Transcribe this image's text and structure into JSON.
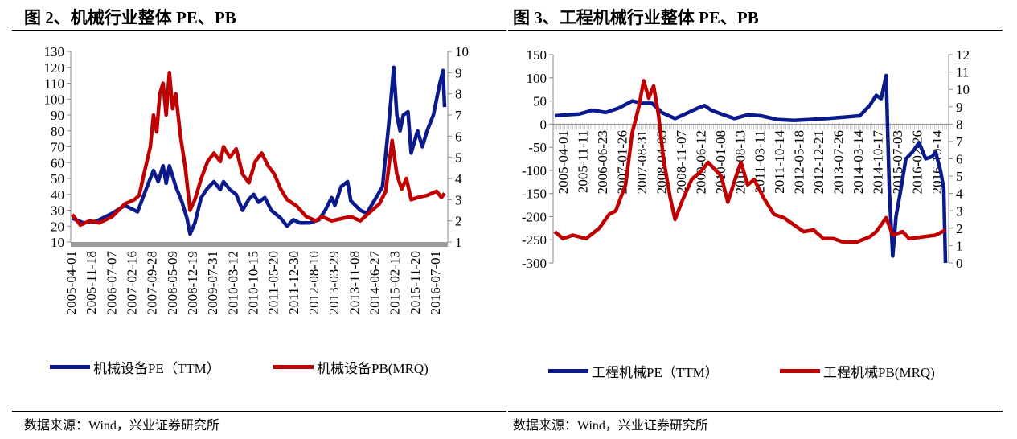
{
  "chart_data": [
    {
      "type": "line",
      "title": "图 2、机械行业整体 PE、PB",
      "y_left": {
        "range": [
          10,
          130
        ],
        "ticks": [
          "10",
          "20",
          "30",
          "40",
          "50",
          "60",
          "70",
          "80",
          "90",
          "100",
          "110",
          "120",
          "130"
        ]
      },
      "y_right": {
        "range": [
          1,
          10
        ],
        "ticks": [
          "1",
          "2",
          "3",
          "4",
          "5",
          "6",
          "7",
          "8",
          "9",
          "10"
        ]
      },
      "x_range": [
        2005.25,
        2016.95
      ],
      "x_tick_labels": [
        "2005-04-01",
        "2005-11-18",
        "2006-07-07",
        "2007-02-16",
        "2007-09-28",
        "2008-05-09",
        "2008-12-19",
        "2009-07-31",
        "2010-03-12",
        "2010-10-15",
        "2011-05-20",
        "2011-12-30",
        "2012-08-10",
        "2013-03-29",
        "2013-11-08",
        "2014-06-27",
        "2015-02-13",
        "2015-11-20",
        "2016-07-01"
      ],
      "series": [
        {
          "name": "机械设备PE（TTM）",
          "axis": "left",
          "color": "#0a1a8c",
          "points": [
            [
              2005.25,
              25
            ],
            [
              2005.6,
              22
            ],
            [
              2006.0,
              23
            ],
            [
              2006.5,
              28
            ],
            [
              2006.9,
              33
            ],
            [
              2007.1,
              31
            ],
            [
              2007.3,
              29
            ],
            [
              2007.6,
              45
            ],
            [
              2007.8,
              55
            ],
            [
              2007.95,
              48
            ],
            [
              2008.1,
              58
            ],
            [
              2008.2,
              47
            ],
            [
              2008.3,
              58
            ],
            [
              2008.5,
              45
            ],
            [
              2008.7,
              35
            ],
            [
              2008.85,
              25
            ],
            [
              2008.95,
              15
            ],
            [
              2009.1,
              22
            ],
            [
              2009.3,
              38
            ],
            [
              2009.5,
              44
            ],
            [
              2009.7,
              48
            ],
            [
              2009.9,
              43
            ],
            [
              2010.0,
              48
            ],
            [
              2010.2,
              43
            ],
            [
              2010.4,
              40
            ],
            [
              2010.6,
              30
            ],
            [
              2010.8,
              37
            ],
            [
              2010.95,
              40
            ],
            [
              2011.1,
              35
            ],
            [
              2011.3,
              38
            ],
            [
              2011.5,
              30
            ],
            [
              2011.8,
              25
            ],
            [
              2012.0,
              20
            ],
            [
              2012.2,
              24
            ],
            [
              2012.4,
              22
            ],
            [
              2012.7,
              22
            ],
            [
              2013.0,
              24
            ],
            [
              2013.2,
              30
            ],
            [
              2013.4,
              38
            ],
            [
              2013.5,
              33
            ],
            [
              2013.7,
              45
            ],
            [
              2013.9,
              48
            ],
            [
              2014.0,
              36
            ],
            [
              2014.3,
              30
            ],
            [
              2014.5,
              28
            ],
            [
              2014.8,
              38
            ],
            [
              2015.0,
              45
            ],
            [
              2015.2,
              85
            ],
            [
              2015.35,
              120
            ],
            [
              2015.45,
              90
            ],
            [
              2015.55,
              80
            ],
            [
              2015.65,
              90
            ],
            [
              2015.8,
              92
            ],
            [
              2015.9,
              66
            ],
            [
              2016.1,
              80
            ],
            [
              2016.25,
              70
            ],
            [
              2016.4,
              80
            ],
            [
              2016.6,
              90
            ],
            [
              2016.8,
              110
            ],
            [
              2016.9,
              118
            ],
            [
              2016.95,
              95
            ]
          ]
        },
        {
          "name": "机械设备PB(MRQ)",
          "axis": "right",
          "color": "#c00000",
          "points": [
            [
              2005.25,
              2.3
            ],
            [
              2005.5,
              1.8
            ],
            [
              2005.8,
              2.0
            ],
            [
              2006.1,
              1.9
            ],
            [
              2006.5,
              2.2
            ],
            [
              2006.9,
              2.8
            ],
            [
              2007.2,
              3.0
            ],
            [
              2007.35,
              3.2
            ],
            [
              2007.5,
              4.2
            ],
            [
              2007.7,
              5.5
            ],
            [
              2007.8,
              7.0
            ],
            [
              2007.9,
              6.2
            ],
            [
              2008.0,
              8.0
            ],
            [
              2008.1,
              8.5
            ],
            [
              2008.2,
              7.0
            ],
            [
              2008.3,
              9.0
            ],
            [
              2008.4,
              7.3
            ],
            [
              2008.5,
              8.0
            ],
            [
              2008.65,
              6.0
            ],
            [
              2008.8,
              4.5
            ],
            [
              2008.95,
              2.5
            ],
            [
              2009.1,
              3.0
            ],
            [
              2009.3,
              4.0
            ],
            [
              2009.5,
              4.8
            ],
            [
              2009.7,
              5.2
            ],
            [
              2009.9,
              4.8
            ],
            [
              2010.0,
              5.5
            ],
            [
              2010.2,
              5.0
            ],
            [
              2010.4,
              5.4
            ],
            [
              2010.6,
              4.2
            ],
            [
              2010.8,
              3.8
            ],
            [
              2011.0,
              4.8
            ],
            [
              2011.2,
              5.2
            ],
            [
              2011.4,
              4.6
            ],
            [
              2011.6,
              4.2
            ],
            [
              2011.8,
              3.5
            ],
            [
              2012.0,
              3.0
            ],
            [
              2012.3,
              2.7
            ],
            [
              2012.6,
              2.2
            ],
            [
              2012.9,
              2.0
            ],
            [
              2013.1,
              2.2
            ],
            [
              2013.4,
              2.0
            ],
            [
              2013.7,
              2.1
            ],
            [
              2014.0,
              2.2
            ],
            [
              2014.3,
              2.0
            ],
            [
              2014.6,
              2.4
            ],
            [
              2014.9,
              2.8
            ],
            [
              2015.1,
              3.4
            ],
            [
              2015.3,
              5.8
            ],
            [
              2015.45,
              4.2
            ],
            [
              2015.6,
              3.5
            ],
            [
              2015.75,
              4.0
            ],
            [
              2015.9,
              3.0
            ],
            [
              2016.1,
              3.1
            ],
            [
              2016.4,
              3.2
            ],
            [
              2016.7,
              3.4
            ],
            [
              2016.85,
              3.1
            ],
            [
              2016.95,
              3.3
            ]
          ]
        }
      ],
      "source": "数据来源：Wind，兴业证券研究所"
    },
    {
      "type": "line",
      "title": "图 3、工程机械行业整体 PE、PB",
      "y_left": {
        "range": [
          -300,
          150
        ],
        "ticks": [
          "-300",
          "-250",
          "-200",
          "-150",
          "-100",
          "-50",
          "0",
          "50",
          "100",
          "150"
        ]
      },
      "y_right": {
        "range": [
          0,
          12
        ],
        "ticks": [
          "0",
          "1",
          "2",
          "3",
          "4",
          "5",
          "6",
          "7",
          "8",
          "9",
          "10",
          "11",
          "12"
        ]
      },
      "x_range": [
        2005.25,
        2017.1
      ],
      "x_tick_labels": [
        "2005-04-01",
        "2005-11-11",
        "2006-06-23",
        "2007-01-26",
        "2007-08-31",
        "2008-04-03",
        "2008-11-07",
        "2009-06-12",
        "2010-01-08",
        "2010-08-13",
        "2011-03-11",
        "2011-10-14",
        "2012-05-18",
        "2012-12-21",
        "2013-07-26",
        "2014-03-14",
        "2014-10-17",
        "2015-07-03",
        "2016-02-26",
        "2016-10-14"
      ],
      "series": [
        {
          "name": "工程机械PE（TTM）",
          "axis": "left",
          "color": "#0a1a8c",
          "points": [
            [
              2005.25,
              18
            ],
            [
              2005.6,
              20
            ],
            [
              2006.0,
              22
            ],
            [
              2006.4,
              30
            ],
            [
              2006.8,
              25
            ],
            [
              2007.2,
              35
            ],
            [
              2007.6,
              50
            ],
            [
              2007.9,
              45
            ],
            [
              2008.2,
              45
            ],
            [
              2008.5,
              25
            ],
            [
              2008.9,
              12
            ],
            [
              2009.3,
              25
            ],
            [
              2009.6,
              35
            ],
            [
              2009.8,
              40
            ],
            [
              2010.0,
              30
            ],
            [
              2010.3,
              22
            ],
            [
              2010.7,
              12
            ],
            [
              2011.1,
              20
            ],
            [
              2011.5,
              18
            ],
            [
              2012.0,
              10
            ],
            [
              2012.5,
              8
            ],
            [
              2013.0,
              10
            ],
            [
              2013.5,
              12
            ],
            [
              2014.0,
              15
            ],
            [
              2014.5,
              18
            ],
            [
              2014.8,
              40
            ],
            [
              2015.0,
              62
            ],
            [
              2015.15,
              55
            ],
            [
              2015.3,
              105
            ],
            [
              2015.4,
              -150
            ],
            [
              2015.5,
              -285
            ],
            [
              2015.6,
              -200
            ],
            [
              2015.75,
              -140
            ],
            [
              2015.9,
              -75
            ],
            [
              2016.1,
              -60
            ],
            [
              2016.3,
              -40
            ],
            [
              2016.5,
              -75
            ],
            [
              2016.7,
              -70
            ],
            [
              2016.8,
              -60
            ],
            [
              2016.95,
              -100
            ],
            [
              2017.05,
              -140
            ],
            [
              2017.1,
              -300
            ]
          ]
        },
        {
          "name": "工程机械PB(MRQ)",
          "axis": "right",
          "color": "#c00000",
          "points": [
            [
              2005.25,
              1.8
            ],
            [
              2005.5,
              1.4
            ],
            [
              2005.8,
              1.6
            ],
            [
              2006.2,
              1.4
            ],
            [
              2006.6,
              2.0
            ],
            [
              2006.9,
              2.8
            ],
            [
              2007.1,
              3.0
            ],
            [
              2007.4,
              4.5
            ],
            [
              2007.6,
              7.5
            ],
            [
              2007.8,
              9.0
            ],
            [
              2007.95,
              10.5
            ],
            [
              2008.1,
              9.5
            ],
            [
              2008.25,
              10.2
            ],
            [
              2008.4,
              8.5
            ],
            [
              2008.55,
              6.0
            ],
            [
              2008.75,
              3.8
            ],
            [
              2008.9,
              2.5
            ],
            [
              2009.1,
              3.5
            ],
            [
              2009.4,
              4.8
            ],
            [
              2009.7,
              5.3
            ],
            [
              2009.9,
              5.8
            ],
            [
              2010.1,
              5.4
            ],
            [
              2010.3,
              5.0
            ],
            [
              2010.5,
              3.5
            ],
            [
              2010.75,
              5.0
            ],
            [
              2010.9,
              5.8
            ],
            [
              2011.1,
              4.5
            ],
            [
              2011.3,
              4.8
            ],
            [
              2011.6,
              3.7
            ],
            [
              2011.9,
              2.8
            ],
            [
              2012.2,
              2.6
            ],
            [
              2012.5,
              2.2
            ],
            [
              2012.8,
              1.8
            ],
            [
              2013.1,
              1.9
            ],
            [
              2013.4,
              1.4
            ],
            [
              2013.7,
              1.4
            ],
            [
              2014.0,
              1.2
            ],
            [
              2014.4,
              1.2
            ],
            [
              2014.8,
              1.5
            ],
            [
              2015.0,
              1.8
            ],
            [
              2015.3,
              2.6
            ],
            [
              2015.5,
              1.6
            ],
            [
              2015.8,
              1.8
            ],
            [
              2016.0,
              1.4
            ],
            [
              2016.4,
              1.5
            ],
            [
              2016.8,
              1.6
            ],
            [
              2017.1,
              1.9
            ]
          ]
        }
      ],
      "source": "数据来源：Wind，兴业证券研究所"
    }
  ]
}
